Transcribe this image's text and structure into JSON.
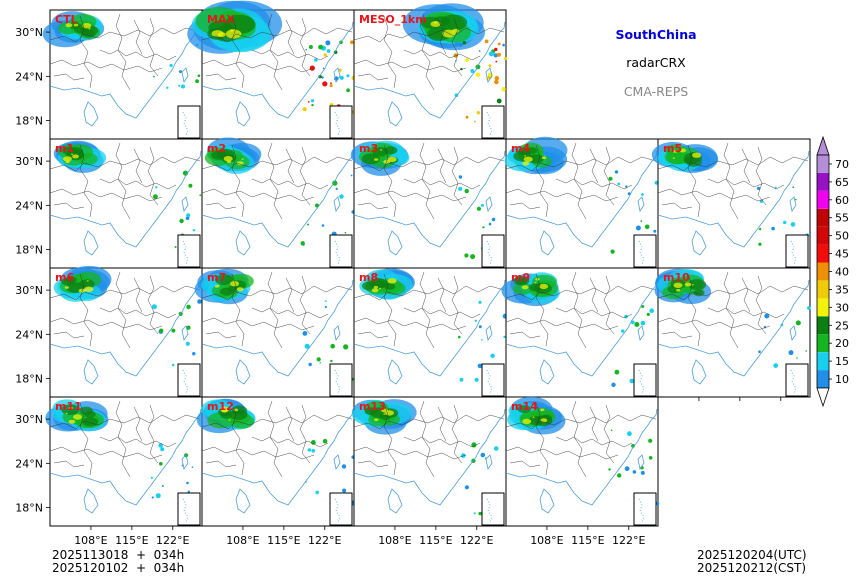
{
  "chart_data": {
    "type": "heatmap",
    "variable": "radarCRX",
    "region": "SouthChina",
    "system": "CMA-REPS",
    "panels": [
      "CTL",
      "MAX",
      "MESO_1km",
      "m1",
      "m2",
      "m3",
      "m4",
      "m5",
      "m6",
      "m7",
      "m8",
      "m9",
      "m10",
      "m11",
      "m12",
      "m13",
      "m14"
    ],
    "lat_ticks": [
      "30°N",
      "24°N",
      "18°N"
    ],
    "lon_ticks": [
      "108°E",
      "115°E",
      "122°E"
    ],
    "lat_values": [
      30,
      24,
      18
    ],
    "lon_values": [
      108,
      115,
      122
    ],
    "extent": {
      "lon": [
        101,
        127
      ],
      "lat": [
        15.5,
        33
      ]
    },
    "colorbar": {
      "levels": [
        10,
        15,
        20,
        25,
        30,
        35,
        40,
        45,
        50,
        55,
        60,
        65,
        70
      ],
      "colors": [
        "#1f8fe8",
        "#17d0ef",
        "#15b521",
        "#0c7f12",
        "#f2f20a",
        "#f0cc06",
        "#ef8f03",
        "#f20c0c",
        "#d10707",
        "#be0404",
        "#f100f0",
        "#9712c2",
        "#b48ed9"
      ]
    },
    "init_times": [
      "2025113018  +  034h",
      "2025120102  +  034h"
    ],
    "valid_times": [
      "2025120204(UTC)",
      "2025120212(CST)"
    ]
  },
  "legend": {
    "region": "SouthChina",
    "field": "radarCRX",
    "system": "CMA-REPS"
  }
}
